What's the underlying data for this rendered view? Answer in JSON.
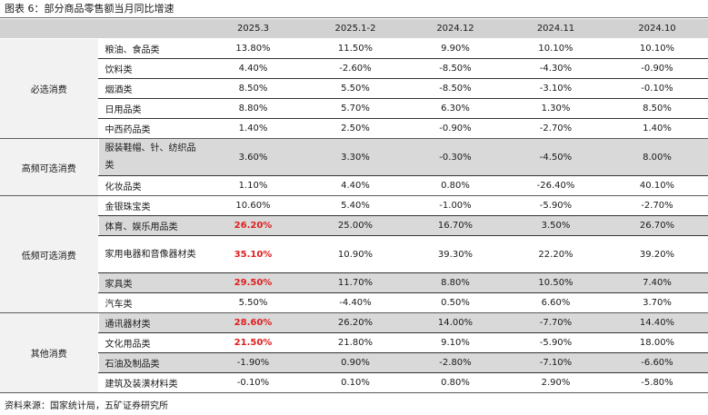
{
  "title": "图表 6：部分商品零售额当月同比增速",
  "source": "资料来源：国家统计局，五矿证券研究所",
  "columns": [
    "2025.3",
    "2025.1-2",
    "2024.12",
    "2024.11",
    "2024.10"
  ],
  "highlight_color": "#e02020",
  "categories": [
    {
      "name": "必选消费",
      "rows": [
        {
          "item": "粮油、食品类",
          "values": [
            "13.80%",
            "11.50%",
            "9.90%",
            "10.10%",
            "10.10%"
          ],
          "shaded": false,
          "highlight": false
        },
        {
          "item": "饮料类",
          "values": [
            "4.40%",
            "-2.60%",
            "-8.50%",
            "-4.30%",
            "-0.90%"
          ],
          "shaded": false,
          "highlight": false
        },
        {
          "item": "烟酒类",
          "values": [
            "8.50%",
            "5.50%",
            "-8.50%",
            "-3.10%",
            "-0.10%"
          ],
          "shaded": false,
          "highlight": false
        },
        {
          "item": "日用品类",
          "values": [
            "8.80%",
            "5.70%",
            "6.30%",
            "1.30%",
            "8.50%"
          ],
          "shaded": false,
          "highlight": false
        },
        {
          "item": "中西药品类",
          "values": [
            "1.40%",
            "2.50%",
            "-0.90%",
            "-2.70%",
            "1.40%"
          ],
          "shaded": false,
          "highlight": false
        }
      ]
    },
    {
      "name": "高频可选消费",
      "rows": [
        {
          "item": "服装鞋帽、针、纺织品类",
          "values": [
            "3.60%",
            "3.30%",
            "-0.30%",
            "-4.50%",
            "8.00%"
          ],
          "shaded": true,
          "highlight": false
        },
        {
          "item": "化妆品类",
          "values": [
            "1.10%",
            "4.40%",
            "0.80%",
            "-26.40%",
            "40.10%"
          ],
          "shaded": false,
          "highlight": false
        }
      ]
    },
    {
      "name": "低频可选消费",
      "rows": [
        {
          "item": "金银珠宝类",
          "values": [
            "10.60%",
            "5.40%",
            "-1.00%",
            "-5.90%",
            "-2.70%"
          ],
          "shaded": false,
          "highlight": false
        },
        {
          "item": "体育、娱乐用品类",
          "values": [
            "26.20%",
            "25.00%",
            "16.70%",
            "3.50%",
            "26.70%"
          ],
          "shaded": true,
          "highlight": true
        },
        {
          "item": "家用电器和音像器材类",
          "values": [
            "35.10%",
            "10.90%",
            "39.30%",
            "22.20%",
            "39.20%"
          ],
          "shaded": false,
          "highlight": true
        },
        {
          "item": "家具类",
          "values": [
            "29.50%",
            "11.70%",
            "8.80%",
            "10.50%",
            "7.40%"
          ],
          "shaded": true,
          "highlight": true
        },
        {
          "item": "汽车类",
          "values": [
            "5.50%",
            "-4.40%",
            "0.50%",
            "6.60%",
            "3.70%"
          ],
          "shaded": false,
          "highlight": false
        }
      ]
    },
    {
      "name": "其他消费",
      "rows": [
        {
          "item": "通讯器材类",
          "values": [
            "28.60%",
            "26.20%",
            "14.00%",
            "-7.70%",
            "14.40%"
          ],
          "shaded": true,
          "highlight": true
        },
        {
          "item": "文化用品类",
          "values": [
            "21.50%",
            "21.80%",
            "9.10%",
            "-5.90%",
            "18.00%"
          ],
          "shaded": false,
          "highlight": true
        },
        {
          "item": "石油及制品类",
          "values": [
            "-1.90%",
            "0.90%",
            "-2.80%",
            "-7.10%",
            "-6.60%"
          ],
          "shaded": true,
          "highlight": false
        },
        {
          "item": "建筑及装潢材料类",
          "values": [
            "-0.10%",
            "0.10%",
            "0.80%",
            "2.90%",
            "-5.80%"
          ],
          "shaded": false,
          "highlight": false
        }
      ]
    }
  ]
}
